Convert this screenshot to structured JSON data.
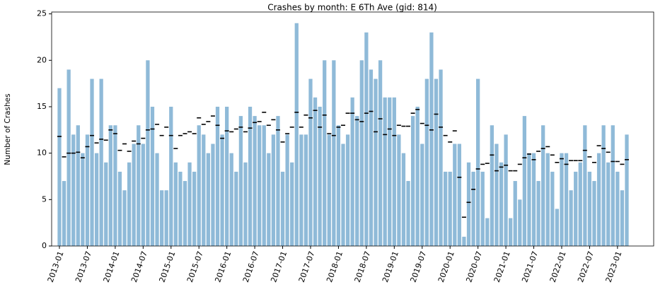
{
  "chart_data": {
    "type": "bar",
    "title": "Crashes by month: E 6Th Ave (gid: 814)",
    "ylabel": "Number of Crashes",
    "categories": [
      "2013-01",
      null,
      null,
      null,
      null,
      null,
      "2013-07",
      null,
      null,
      null,
      null,
      null,
      "2014-01",
      null,
      null,
      null,
      null,
      null,
      "2014-07",
      null,
      null,
      null,
      null,
      null,
      "2015-01",
      null,
      null,
      null,
      null,
      null,
      "2015-07",
      null,
      null,
      null,
      null,
      null,
      "2016-01",
      null,
      null,
      null,
      null,
      null,
      "2016-07",
      null,
      null,
      null,
      null,
      null,
      "2017-01",
      null,
      null,
      null,
      null,
      null,
      "2017-07",
      null,
      null,
      null,
      null,
      null,
      "2018-01",
      null,
      null,
      null,
      null,
      null,
      "2018-07",
      null,
      null,
      null,
      null,
      null,
      "2019-01",
      null,
      null,
      null,
      null,
      null,
      "2019-07",
      null,
      null,
      null,
      null,
      null,
      "2020-01",
      null,
      null,
      null,
      null,
      null,
      "2020-07",
      null,
      null,
      null,
      null,
      null,
      "2021-01",
      null,
      null,
      null,
      null,
      null,
      "2021-07",
      null,
      null,
      null,
      null,
      null,
      "2022-01",
      null,
      null,
      null,
      null,
      null,
      "2022-07",
      null,
      null,
      null,
      null,
      null,
      "2023-01",
      null,
      null
    ],
    "series": [
      {
        "color": "#8fbad8",
        "values": [
          17,
          7,
          19,
          12,
          13,
          10,
          12,
          18,
          10,
          18,
          9,
          13,
          13,
          8,
          6,
          9,
          11,
          13,
          11,
          20,
          15,
          10,
          6,
          6,
          15,
          9,
          8,
          7,
          9,
          8,
          13,
          12,
          10,
          11,
          15,
          12,
          15,
          10,
          8,
          14,
          9,
          15,
          14,
          13,
          13,
          10,
          12,
          14,
          8,
          12,
          9,
          24,
          12,
          12,
          18,
          16,
          15,
          20,
          12,
          20,
          13,
          11,
          12,
          16,
          14,
          20,
          23,
          19,
          18,
          20,
          16,
          16,
          16,
          12,
          10,
          7,
          14,
          15,
          11,
          18,
          23,
          18,
          19,
          8,
          8,
          11,
          11,
          1,
          9,
          8,
          18,
          8,
          3,
          13,
          11,
          9,
          12,
          3,
          7,
          5,
          14,
          10,
          10,
          7,
          13,
          10,
          8,
          4,
          10,
          10,
          6,
          8,
          9,
          13,
          8,
          7,
          10,
          13,
          9,
          13,
          8,
          6,
          12
        ]
      },
      {
        "color": "#000000",
        "marker": "dash",
        "values": [
          11.8,
          9.6,
          10,
          10,
          10.1,
          9.5,
          10.7,
          11.9,
          11.1,
          11.5,
          11.4,
          12.5,
          12.1,
          10.3,
          11,
          10.2,
          11.3,
          11,
          11.6,
          12.5,
          12.6,
          13.1,
          11.9,
          12.8,
          11.9,
          10.5,
          11.9,
          12.1,
          12.3,
          12.1,
          13.8,
          13.1,
          13.4,
          14,
          13,
          11.6,
          12.4,
          12.3,
          12.6,
          12.8,
          12.3,
          12.7,
          13.3,
          13.4,
          14.4,
          13,
          13.6,
          12.5,
          11.2,
          12.1,
          12.8,
          14.4,
          12.8,
          14.1,
          13.8,
          14.6,
          12.8,
          14.1,
          12.1,
          11.9,
          12.8,
          13,
          14.3,
          14.3,
          13.6,
          13.4,
          14.3,
          14.5,
          12.3,
          13.7,
          12,
          12.6,
          11.9,
          13,
          12.9,
          12.9,
          14.3,
          14.7,
          13.2,
          13,
          12.5,
          14.2,
          12.8,
          11.9,
          11.2,
          12.4,
          7.4,
          3.1,
          4.7,
          6.1,
          8.3,
          8.8,
          8.9,
          9.8,
          8.1,
          8.5,
          8.7,
          8.1,
          8.1,
          8.8,
          9.5,
          9.9,
          9.3,
          10.2,
          10.5,
          10.7,
          9.8,
          9,
          9.4,
          8.8,
          9.2,
          9.2,
          9.2,
          10.3,
          9.6,
          9,
          10.8,
          10.5,
          10.1,
          9.1,
          9.1,
          8.8,
          9.3
        ]
      }
    ],
    "ylim": [
      0,
      25.2
    ],
    "yticks": [
      0,
      5,
      10,
      15,
      20,
      25
    ]
  }
}
